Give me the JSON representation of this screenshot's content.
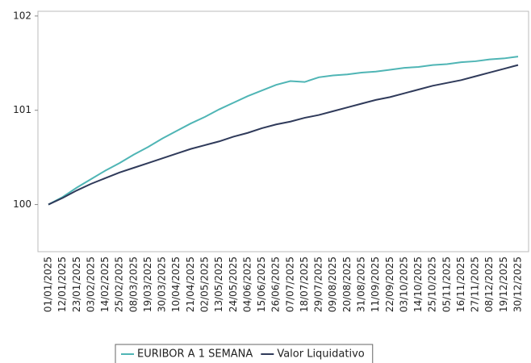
{
  "chart_data": {
    "type": "line",
    "categories": [
      "01/01/2025",
      "12/01/2025",
      "23/01/2025",
      "03/02/2025",
      "14/02/2025",
      "25/02/2025",
      "08/03/2025",
      "19/03/2025",
      "30/03/2025",
      "10/04/2025",
      "21/04/2025",
      "02/05/2025",
      "13/05/2025",
      "24/05/2025",
      "04/06/2025",
      "15/06/2025",
      "26/06/2025",
      "07/07/2025",
      "18/07/2025",
      "29/07/2025",
      "09/08/2025",
      "20/08/2025",
      "31/08/2025",
      "11/09/2025",
      "22/09/2025",
      "03/10/2025",
      "14/10/2025",
      "25/10/2025",
      "05/11/2025",
      "16/11/2025",
      "27/11/2025",
      "08/12/2025",
      "19/12/2025",
      "30/12/2025"
    ],
    "series": [
      {
        "name": "EURIBOR A 1 SEMANA",
        "color": "#4fb5b5",
        "values": [
          100,
          100.08,
          100.18,
          100.27,
          100.36,
          100.44,
          100.53,
          100.61,
          100.7,
          100.78,
          100.86,
          100.93,
          101.01,
          101.08,
          101.15,
          101.21,
          101.27,
          101.31,
          101.3,
          101.35,
          101.37,
          101.38,
          101.4,
          101.41,
          101.43,
          101.45,
          101.46,
          101.48,
          101.49,
          101.51,
          101.52,
          101.54,
          101.55,
          101.57
        ]
      },
      {
        "name": "Valor Liquidativo",
        "color": "#2f3a5a",
        "values": [
          100,
          100.07,
          100.15,
          100.22,
          100.28,
          100.34,
          100.39,
          100.44,
          100.49,
          100.54,
          100.59,
          100.63,
          100.67,
          100.72,
          100.76,
          100.81,
          100.85,
          100.88,
          100.92,
          100.95,
          100.99,
          101.03,
          101.07,
          101.11,
          101.14,
          101.18,
          101.22,
          101.26,
          101.29,
          101.32,
          101.36,
          101.4,
          101.44,
          101.48
        ]
      }
    ],
    "ylim": [
      99.5,
      102.05
    ],
    "yticks": [
      100,
      101,
      102
    ],
    "grid": false,
    "legend": "bottom"
  }
}
